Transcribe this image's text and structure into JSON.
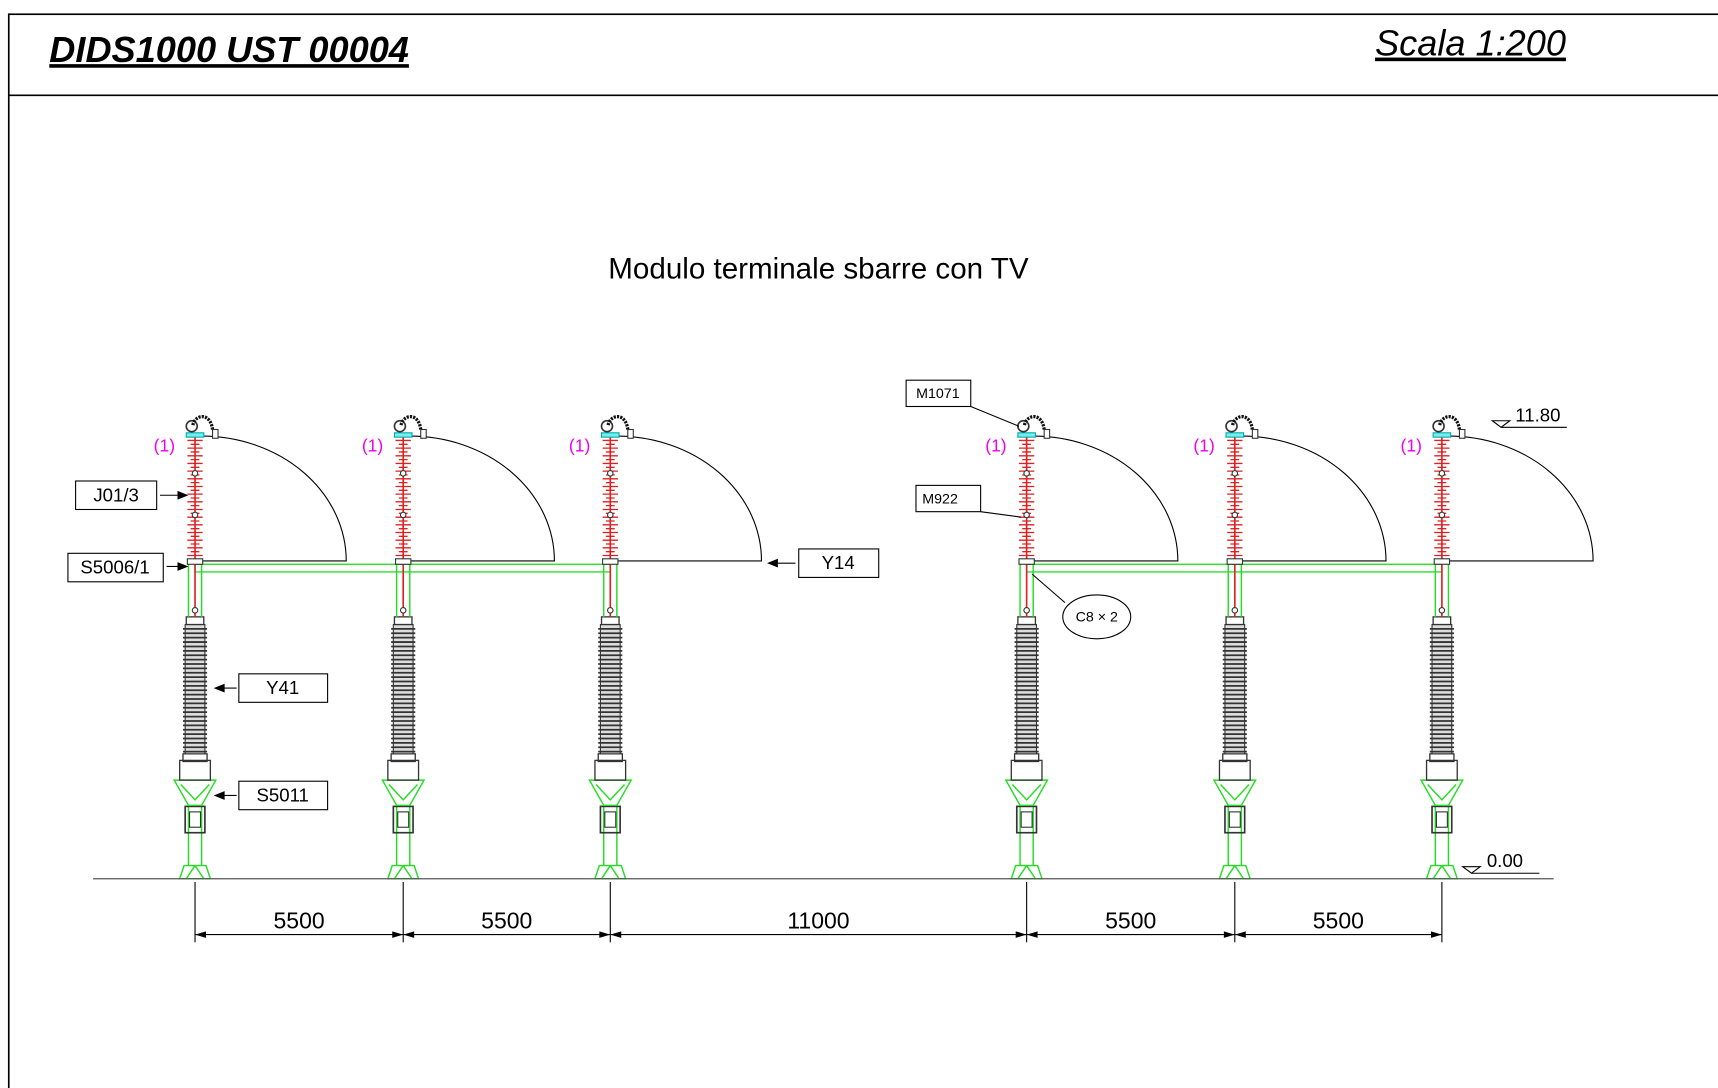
{
  "header": {
    "code": "DIDS1000 UST 00004",
    "scale": "Scala 1:200"
  },
  "title": "Modulo terminale sbarre con TV",
  "labels": {
    "j01": "J01/3",
    "s5006": "S5006/1",
    "y14": "Y14",
    "y41": "Y41",
    "s5011": "S5011",
    "m1071": "M1071",
    "m922": "M922",
    "c8": "C8 × 2"
  },
  "levels": {
    "top": "11.80",
    "ground": "0.00"
  },
  "markers": [
    "(1)",
    "(1)",
    "(1)",
    "(1)",
    "(1)",
    "(1)"
  ],
  "dimensions": [
    "5500",
    "5500",
    "11000",
    "5500",
    "5500"
  ]
}
